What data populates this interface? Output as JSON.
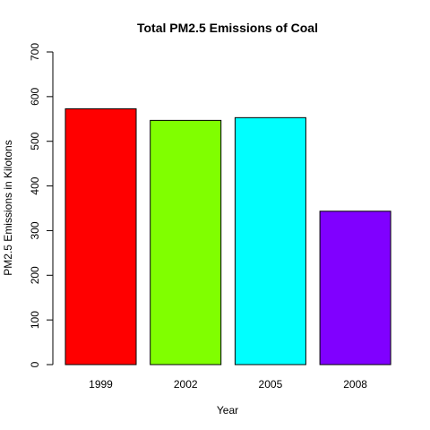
{
  "chart_data": {
    "type": "bar",
    "title": "Total PM2.5 Emissions of Coal",
    "xlabel": "Year",
    "ylabel": "PM2.5 Emissions in Kilotons",
    "categories": [
      "1999",
      "2002",
      "2005",
      "2008"
    ],
    "values": [
      572.8,
      546.8,
      552.9,
      343.4
    ],
    "colors": [
      "#FF0000",
      "#80FF00",
      "#00FFFF",
      "#8000FF"
    ],
    "ylim": [
      0,
      700
    ],
    "yticks": [
      0,
      100,
      200,
      300,
      400,
      500,
      600,
      700
    ],
    "grid": false,
    "legend": "none"
  }
}
